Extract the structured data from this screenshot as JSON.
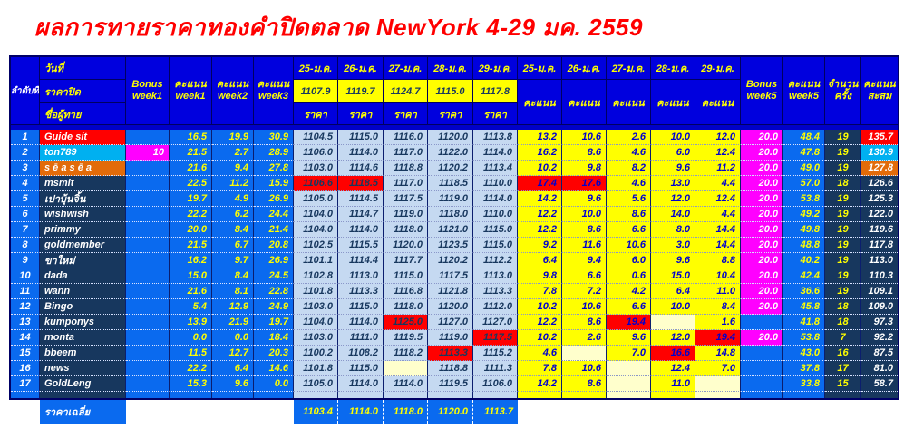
{
  "title": "ผลการทายราคาทองคำปิดตลาด NewYork 4-29 มค. 2559",
  "h": {
    "rank": "ลำดับที่",
    "date": "วันที่",
    "close": "ราคาปิด",
    "name": "ชื่อผู้ทาย",
    "bonus": "Bonus",
    "week1": "week1",
    "week2": "week2",
    "week3": "week3",
    "week5": "week5",
    "score": "คะแนน",
    "price": "ราคา",
    "count1": "จำนวน",
    "count2": "ครั้ง",
    "total1": "คะแนน",
    "total2": "สะสม",
    "dates": [
      "25-ม.ค.",
      "26-ม.ค.",
      "27-ม.ค.",
      "28-ม.ค.",
      "29-ม.ค."
    ],
    "close_prices": [
      "1107.9",
      "1119.7",
      "1124.7",
      "1115.0",
      "1117.8"
    ]
  },
  "colors": {
    "header_bg": "#0000de",
    "grid_blue": "#0a6aef",
    "navy": "#17375e",
    "red": "#ff0000",
    "cyan": "#00b0f0",
    "orange": "#e26b0a",
    "magenta": "#ff00ff",
    "yellow": "#ffff00",
    "cream": "#ffffcc",
    "light_blue": "#c5d9f1",
    "title_red": "#ff0000"
  },
  "rows": [
    {
      "rank": "1",
      "name": "Guide sit",
      "color": "red",
      "bonus1": "",
      "w1": "16.5",
      "w2": "19.9",
      "w3": "30.9",
      "prices": [
        "1104.5",
        "1115.0",
        "1116.0",
        "1120.0",
        "1113.8"
      ],
      "price_hl": [
        0,
        0,
        0,
        0,
        0
      ],
      "scores": [
        "13.2",
        "10.6",
        "2.6",
        "10.0",
        "12.0"
      ],
      "score_hl": [
        0,
        0,
        0,
        0,
        0
      ],
      "bonus5": "20.0",
      "w5": "48.4",
      "count": "19",
      "total": "135.7"
    },
    {
      "rank": "2",
      "name": "ton789",
      "color": "cyan",
      "bonus1": "10",
      "w1": "21.5",
      "w2": "2.7",
      "w3": "28.9",
      "prices": [
        "1106.0",
        "1114.0",
        "1117.0",
        "1122.0",
        "1114.0"
      ],
      "price_hl": [
        0,
        0,
        0,
        0,
        0
      ],
      "scores": [
        "16.2",
        "8.6",
        "4.6",
        "6.0",
        "12.4"
      ],
      "score_hl": [
        0,
        0,
        0,
        0,
        0
      ],
      "bonus5": "20.0",
      "w5": "47.8",
      "count": "19",
      "total": "130.9"
    },
    {
      "rank": "3",
      "name": "s ē a s ē a",
      "color": "orange",
      "bonus1": "",
      "w1": "21.6",
      "w2": "9.4",
      "w3": "27.8",
      "prices": [
        "1103.0",
        "1114.6",
        "1118.8",
        "1120.2",
        "1113.4"
      ],
      "price_hl": [
        0,
        0,
        0,
        0,
        0
      ],
      "scores": [
        "10.2",
        "9.8",
        "8.2",
        "9.6",
        "11.2"
      ],
      "score_hl": [
        0,
        0,
        0,
        0,
        0
      ],
      "bonus5": "20.0",
      "w5": "49.0",
      "count": "19",
      "total": "127.8"
    },
    {
      "rank": "4",
      "name": "msmit",
      "color": "navy",
      "bonus1": "",
      "w1": "22.5",
      "w2": "11.2",
      "w3": "15.9",
      "prices": [
        "1106.6",
        "1118.5",
        "1117.0",
        "1118.5",
        "1110.0"
      ],
      "price_hl": [
        1,
        1,
        0,
        0,
        0
      ],
      "scores": [
        "17.4",
        "17.6",
        "4.6",
        "13.0",
        "4.4"
      ],
      "score_hl": [
        1,
        1,
        0,
        0,
        0
      ],
      "bonus5": "20.0",
      "w5": "57.0",
      "count": "18",
      "total": "126.6"
    },
    {
      "rank": "5",
      "name": "เปาบุ้นจิ้น",
      "color": "navy",
      "bonus1": "",
      "w1": "19.7",
      "w2": "4.9",
      "w3": "26.9",
      "prices": [
        "1105.0",
        "1114.5",
        "1117.5",
        "1119.0",
        "1114.0"
      ],
      "price_hl": [
        0,
        0,
        0,
        0,
        0
      ],
      "scores": [
        "14.2",
        "9.6",
        "5.6",
        "12.0",
        "12.4"
      ],
      "score_hl": [
        0,
        0,
        0,
        0,
        0
      ],
      "bonus5": "20.0",
      "w5": "53.8",
      "count": "19",
      "total": "125.3"
    },
    {
      "rank": "6",
      "name": "wishwish",
      "color": "navy",
      "bonus1": "",
      "w1": "22.2",
      "w2": "6.2",
      "w3": "24.4",
      "prices": [
        "1104.0",
        "1114.7",
        "1119.0",
        "1118.0",
        "1110.0"
      ],
      "price_hl": [
        0,
        0,
        0,
        0,
        0
      ],
      "scores": [
        "12.2",
        "10.0",
        "8.6",
        "14.0",
        "4.4"
      ],
      "score_hl": [
        0,
        0,
        0,
        0,
        0
      ],
      "bonus5": "20.0",
      "w5": "49.2",
      "count": "19",
      "total": "122.0"
    },
    {
      "rank": "7",
      "name": "primmy",
      "color": "navy",
      "bonus1": "",
      "w1": "20.0",
      "w2": "8.4",
      "w3": "21.4",
      "prices": [
        "1104.0",
        "1114.0",
        "1118.0",
        "1121.0",
        "1115.0"
      ],
      "price_hl": [
        0,
        0,
        0,
        0,
        0
      ],
      "scores": [
        "12.2",
        "8.6",
        "6.6",
        "8.0",
        "14.4"
      ],
      "score_hl": [
        0,
        0,
        0,
        0,
        0
      ],
      "bonus5": "20.0",
      "w5": "49.8",
      "count": "19",
      "total": "119.6"
    },
    {
      "rank": "8",
      "name": "goldmember",
      "color": "navy",
      "bonus1": "",
      "w1": "21.5",
      "w2": "6.7",
      "w3": "20.8",
      "prices": [
        "1102.5",
        "1115.5",
        "1120.0",
        "1123.5",
        "1115.0"
      ],
      "price_hl": [
        0,
        0,
        0,
        0,
        0
      ],
      "scores": [
        "9.2",
        "11.6",
        "10.6",
        "3.0",
        "14.4"
      ],
      "score_hl": [
        0,
        0,
        0,
        0,
        0
      ],
      "bonus5": "20.0",
      "w5": "48.8",
      "count": "19",
      "total": "117.8"
    },
    {
      "rank": "9",
      "name": "ขาใหม่",
      "color": "navy",
      "bonus1": "",
      "w1": "16.2",
      "w2": "9.7",
      "w3": "26.9",
      "prices": [
        "1101.1",
        "1114.4",
        "1117.7",
        "1120.2",
        "1112.2"
      ],
      "price_hl": [
        0,
        0,
        0,
        0,
        0
      ],
      "scores": [
        "6.4",
        "9.4",
        "6.0",
        "9.6",
        "8.8"
      ],
      "score_hl": [
        0,
        0,
        0,
        0,
        0
      ],
      "bonus5": "20.0",
      "w5": "40.2",
      "count": "19",
      "total": "113.0"
    },
    {
      "rank": "10",
      "name": "dada",
      "color": "navy",
      "bonus1": "",
      "w1": "15.0",
      "w2": "8.4",
      "w3": "24.5",
      "prices": [
        "1102.8",
        "1113.0",
        "1115.0",
        "1117.5",
        "1113.0"
      ],
      "price_hl": [
        0,
        0,
        0,
        0,
        0
      ],
      "scores": [
        "9.8",
        "6.6",
        "0.6",
        "15.0",
        "10.4"
      ],
      "score_hl": [
        0,
        0,
        0,
        0,
        0
      ],
      "bonus5": "20.0",
      "w5": "42.4",
      "count": "19",
      "total": "110.3"
    },
    {
      "rank": "11",
      "name": "wann",
      "color": "navy",
      "bonus1": "",
      "w1": "21.6",
      "w2": "8.1",
      "w3": "22.8",
      "prices": [
        "1101.8",
        "1113.3",
        "1116.8",
        "1121.8",
        "1113.3"
      ],
      "price_hl": [
        0,
        0,
        0,
        0,
        0
      ],
      "scores": [
        "7.8",
        "7.2",
        "4.2",
        "6.4",
        "11.0"
      ],
      "score_hl": [
        0,
        0,
        0,
        0,
        0
      ],
      "bonus5": "20.0",
      "w5": "36.6",
      "count": "19",
      "total": "109.1"
    },
    {
      "rank": "12",
      "name": "Bingo",
      "color": "navy",
      "bonus1": "",
      "w1": "5.4",
      "w2": "12.9",
      "w3": "24.9",
      "prices": [
        "1103.0",
        "1115.0",
        "1118.0",
        "1120.0",
        "1112.0"
      ],
      "price_hl": [
        0,
        0,
        0,
        0,
        0
      ],
      "scores": [
        "10.2",
        "10.6",
        "6.6",
        "10.0",
        "8.4"
      ],
      "score_hl": [
        0,
        0,
        0,
        0,
        0
      ],
      "bonus5": "20.0",
      "w5": "45.8",
      "count": "18",
      "total": "109.0"
    },
    {
      "rank": "13",
      "name": "kumponys",
      "color": "navy",
      "bonus1": "",
      "w1": "13.9",
      "w2": "21.9",
      "w3": "19.7",
      "prices": [
        "1104.0",
        "1114.0",
        "1125.0",
        "1127.0",
        "1127.0"
      ],
      "price_hl": [
        0,
        0,
        1,
        0,
        0
      ],
      "scores": [
        "12.2",
        "8.6",
        "19.4",
        "",
        "1.6"
      ],
      "score_hl": [
        0,
        0,
        1,
        0,
        0
      ],
      "bonus5": "",
      "w5": "41.8",
      "count": "18",
      "total": "97.3"
    },
    {
      "rank": "14",
      "name": "monta",
      "color": "navy",
      "bonus1": "",
      "w1": "0.0",
      "w2": "0.0",
      "w3": "18.4",
      "prices": [
        "1103.0",
        "1111.0",
        "1119.5",
        "1119.0",
        "1117.5"
      ],
      "price_hl": [
        0,
        0,
        0,
        0,
        1
      ],
      "scores": [
        "10.2",
        "2.6",
        "9.6",
        "12.0",
        "19.4"
      ],
      "score_hl": [
        0,
        0,
        0,
        0,
        1
      ],
      "bonus5": "20.0",
      "w5": "53.8",
      "count": "7",
      "total": "92.2"
    },
    {
      "rank": "15",
      "name": "bbeem",
      "color": "navy",
      "bonus1": "",
      "w1": "11.5",
      "w2": "12.7",
      "w3": "20.3",
      "prices": [
        "1100.2",
        "1108.2",
        "1118.2",
        "1113.3",
        "1115.2"
      ],
      "price_hl": [
        0,
        0,
        0,
        1,
        0
      ],
      "scores": [
        "4.6",
        "",
        "7.0",
        "16.6",
        "14.8"
      ],
      "score_hl": [
        0,
        0,
        0,
        1,
        0
      ],
      "bonus5": "",
      "w5": "43.0",
      "count": "16",
      "total": "87.5"
    },
    {
      "rank": "16",
      "name": "news",
      "color": "navy",
      "bonus1": "",
      "w1": "22.2",
      "w2": "6.4",
      "w3": "14.6",
      "prices": [
        "1101.8",
        "1115.0",
        "",
        "1118.8",
        "1111.3"
      ],
      "price_hl": [
        0,
        0,
        0,
        0,
        0
      ],
      "scores": [
        "7.8",
        "10.6",
        "",
        "12.4",
        "7.0"
      ],
      "score_hl": [
        0,
        0,
        0,
        0,
        0
      ],
      "bonus5": "",
      "w5": "37.8",
      "count": "17",
      "total": "81.0"
    },
    {
      "rank": "17",
      "name": "GoldLeng",
      "color": "navy",
      "bonus1": "",
      "w1": "15.3",
      "w2": "9.6",
      "w3": "0.0",
      "prices": [
        "1105.0",
        "1114.0",
        "1114.0",
        "1119.5",
        "1106.0"
      ],
      "price_hl": [
        0,
        0,
        0,
        0,
        0
      ],
      "scores": [
        "14.2",
        "8.6",
        "",
        "11.0",
        ""
      ],
      "score_hl": [
        0,
        0,
        0,
        0,
        0
      ],
      "bonus5": "",
      "w5": "33.8",
      "count": "15",
      "total": "58.7"
    }
  ],
  "footer": {
    "avg_label": "ราคาเฉลี่ย",
    "avg_prices": [
      "1103.4",
      "1114.0",
      "1118.0",
      "1120.0",
      "1113.7"
    ]
  }
}
